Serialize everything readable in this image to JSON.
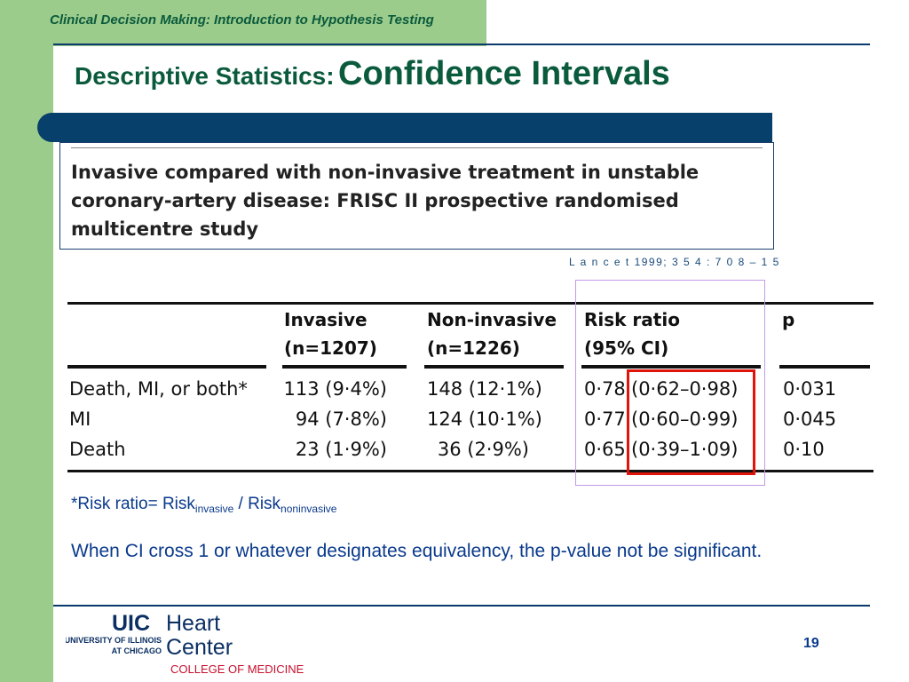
{
  "header": {
    "course_title": "Clinical Decision Making: Introduction to Hypothesis Testing",
    "slide_title_part1": "Descriptive Statistics:",
    "slide_title_part2": "Confidence Intervals"
  },
  "paper": {
    "title": "Invasive compared with non-invasive treatment in unstable coronary-artery disease: FRISC II prospective randomised multicentre study",
    "citation": "L a n c e t 1999; 3 5 4 : 7 0 8 – 1 5"
  },
  "table": {
    "headers": [
      {
        "line1": "Invasive",
        "line2": "(n=1207)"
      },
      {
        "line1": "Non-invasive",
        "line2": "(n=1226)"
      },
      {
        "line1": "Risk ratio",
        "line2": "(95% CI)"
      },
      {
        "line1": "p",
        "line2": ""
      }
    ],
    "rows": [
      {
        "label": "Death, MI, or both*",
        "invasive": "113 (9·4%)",
        "noninvasive": "148 (12·1%)",
        "rr": "0·78",
        "ci": "(0·62–0·98)",
        "p": "0·031"
      },
      {
        "label": "MI",
        "invasive": "94 (7·8%)",
        "noninvasive": "124 (10·1%)",
        "rr": "0·77",
        "ci": "(0·60–0·99)",
        "p": "0·045"
      },
      {
        "label": "Death",
        "invasive": "23 (1·9%)",
        "noninvasive": "36 (2·9%)",
        "rr": "0·65",
        "ci": "(0·39–1·09)",
        "p": "0·10"
      }
    ]
  },
  "notes": {
    "rr_prefix": "*Risk ratio= Risk",
    "rr_sub1": "invasive",
    "rr_mid": " / Risk",
    "rr_sub2": "noninvasive",
    "ci_note": "When CI cross 1 or whatever designates equivalency, the p-value not be significant."
  },
  "logo": {
    "uic": "UIC",
    "heart": "Heart",
    "center": "Center",
    "univ_line1": "UNIVERSITY OF ILLINOIS",
    "univ_line2": "AT CHICAGO",
    "college": "COLLEGE OF MEDICINE"
  },
  "page_number": "19",
  "colors": {
    "green_accent": "#9ccc8c",
    "title_green": "#0a5a3c",
    "navy": "#07406a",
    "text_blue": "#0a3a8c",
    "highlight_red": "#e0140a",
    "highlight_purple": "#c39be8"
  }
}
